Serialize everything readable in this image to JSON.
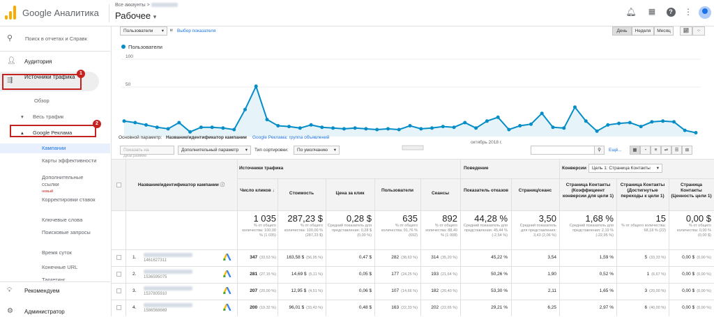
{
  "app": {
    "title": "Google Аналитика",
    "accounts_label": "Все аккаунты",
    "account_name": "Рабочее"
  },
  "colors": {
    "accent": "#058dc7",
    "logo": "#f9ab00",
    "highlight": "#c5221f",
    "link": "#1a73e8"
  },
  "topbar_icons": [
    "bell-icon",
    "apps-icon",
    "help-icon",
    "more-vert-icon"
  ],
  "sidebar": {
    "search_placeholder": "Поиск в отчетах и Справк",
    "audience": "Аудитория",
    "sources": "Источники трафика",
    "overview": "Обзор",
    "all_traffic": "Весь трафик",
    "google_ads": "Google Реклама",
    "items": [
      "Кампании",
      "Карты эффективности",
      "Дополнительные ссылки",
      "Корректировки ставок",
      "Ключевые слова",
      "Поисковые запросы",
      "Время суток",
      "Конечные URL",
      "Таргетинг"
    ],
    "new_badge": "новый",
    "recommend": "Рекомендуем",
    "admin": "Администратор",
    "badge1": "1",
    "badge2": "2"
  },
  "toolbar": {
    "metric_select": "Пользователи",
    "vs": "и",
    "choose_metric": "Выбор показателя",
    "periods": [
      "День",
      "Неделя",
      "Месяц"
    ],
    "active_period": "День"
  },
  "chart_data": {
    "type": "line",
    "series": [
      {
        "name": "Пользователи",
        "values": [
          20,
          18,
          15,
          12,
          10,
          18,
          6,
          12,
          12,
          11,
          9,
          35,
          65,
          22,
          14,
          13,
          11,
          15,
          12,
          11,
          10,
          11,
          10,
          9,
          10,
          9,
          14,
          10,
          11,
          13,
          12,
          18,
          11,
          20,
          25,
          9,
          14,
          16,
          30,
          12,
          11,
          38,
          20,
          7,
          15,
          17,
          18,
          13,
          19,
          20,
          19,
          8,
          5
        ]
      }
    ],
    "ylim": [
      0,
      120
    ],
    "yticks": [
      100,
      50
    ],
    "xlabel_annotation": "октябрь 2018 г."
  },
  "dimension": {
    "primary_label": "Основной параметр:",
    "primary_value": "Название/идентификатор кампании",
    "secondary_link": "Google Реклама: группа объявлений"
  },
  "controls": {
    "plot_rows": "Показать на диаграмме",
    "extra_param": "Дополнительный параметр",
    "sort_label": "Тип сортировки:",
    "sort_value": "По умолчанию",
    "search_more": "Ещё..."
  },
  "table": {
    "col_name": "Название/идентификатор кампании",
    "grp_acq": "Источники трафика",
    "grp_beh": "Поведение",
    "grp_conv": "Конверсии",
    "conv_select": "Цель 1: Страница Контакты",
    "cols": [
      "Число кликов",
      "Стоимость",
      "Цена за клик",
      "Пользователи",
      "Сеансы",
      "Показатель отказов",
      "Страниц/сеанс",
      "Страница Контакты (Коэффициент конверсии для цели 1)",
      "Страница Контакты (Достигнутые переходы к цели 1)",
      "Страница Контакты (Ценность цели 1)"
    ],
    "totals": [
      "1 035",
      "287,23 $",
      "0,28 $",
      "635",
      "892",
      "44,28 %",
      "3,50",
      "1,68 %",
      "15",
      "0,00 $"
    ],
    "totals_sub": [
      "% от общего количества: 100,00 % (1 035)",
      "% от общего количества: 100,00 % (287,23 $)",
      "Средний показатель для представления: 0,28 $ (0,00 %)",
      "% от общего количества: 91,76 % (692)",
      "% от общего количества: 88,49 % (1 008)",
      "Средний показатель для представления: 45,44 % (-2,54 %)",
      "Средний показатель для представления: 3,43 (2,06 %)",
      "Средний показатель для представления: 2,19 % (-22,95 %)",
      "% от общего количества: 68,18 % (22)",
      "% от общего количества: 0,00 % (0,00 $)"
    ],
    "rows": [
      {
        "n": "1.",
        "id": "1461627311",
        "v": [
          "347",
          "163,58 $",
          "0,47 $",
          "282",
          "314",
          "45,22 %",
          "3,54",
          "1,59 %",
          "5",
          "0,00 $"
        ],
        "p": [
          "(33,53 %)",
          "(56,95 %)",
          "",
          "(38,63 %)",
          "(35,20 %)",
          "",
          "",
          "",
          "(33,33 %)",
          "(0,00 %)"
        ]
      },
      {
        "n": "2.",
        "id": "1536595075",
        "v": [
          "281",
          "14,69 $",
          "0,05 $",
          "177",
          "193",
          "50,26 %",
          "1,90",
          "0,52 %",
          "1",
          "0,00 $"
        ],
        "p": [
          "(27,15 %)",
          "(5,11 %)",
          "",
          "(24,25 %)",
          "(21,64 %)",
          "",
          "",
          "",
          "(6,67 %)",
          "(0,00 %)"
        ]
      },
      {
        "n": "3.",
        "id": "1537805910",
        "v": [
          "207",
          "12,95 $",
          "0,06 $",
          "107",
          "182",
          "53,30 %",
          "2,11",
          "1,65 %",
          "3",
          "0,00 $"
        ],
        "p": [
          "(20,00 %)",
          "(4,51 %)",
          "",
          "(14,66 %)",
          "(20,40 %)",
          "",
          "",
          "",
          "(20,00 %)",
          "(0,00 %)"
        ]
      },
      {
        "n": "4.",
        "id": "1586568669",
        "v": [
          "200",
          "96,01 $",
          "0,48 $",
          "163",
          "202",
          "29,21 %",
          "6,25",
          "2,97 %",
          "6",
          "0,00 $"
        ],
        "p": [
          "(19,32 %)",
          "(33,43 %)",
          "",
          "(22,33 %)",
          "(22,65 %)",
          "",
          "",
          "",
          "(40,00 %)",
          "(0,00 %)"
        ]
      }
    ]
  }
}
